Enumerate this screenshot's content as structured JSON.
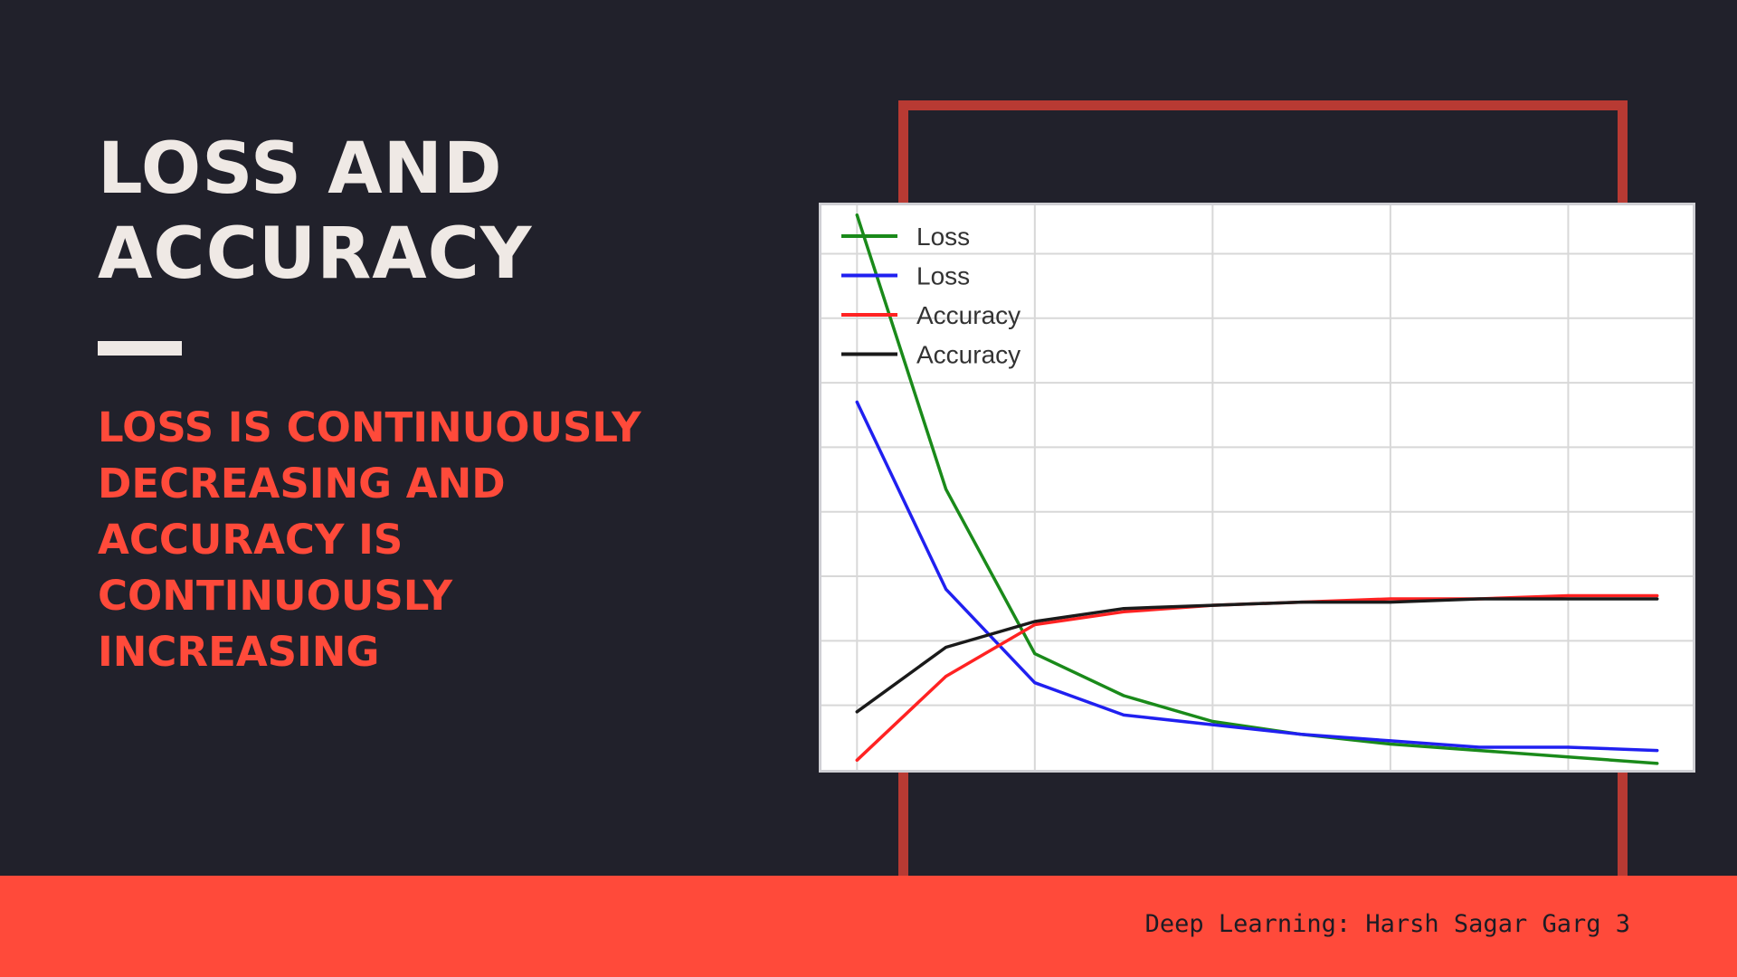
{
  "slide": {
    "title_lines": [
      "LOSS AND",
      "ACCURACY"
    ],
    "subtitle_lines": [
      "LOSS IS CONTINUOUSLY",
      "DECREASING AND",
      "ACCURACY IS",
      "CONTINUOUSLY",
      "INCREASING"
    ],
    "footer": "Deep Learning: Harsh Sagar Garg 3"
  },
  "colors": {
    "background": "#21212b",
    "title": "#efe9e5",
    "accent": "#ff4a3a",
    "frame": "#b83a33"
  },
  "chart_data": {
    "type": "line",
    "title": "",
    "xlabel": "",
    "ylabel": "",
    "x": [
      0,
      1,
      2,
      3,
      4,
      5,
      6,
      7,
      8,
      9
    ],
    "xlim": [
      -0.4,
      9.4
    ],
    "ylim": [
      0.2,
      1.95
    ],
    "grid": true,
    "legend_position": "top-left",
    "series": [
      {
        "name": "Loss",
        "color": "#1a8a1a",
        "values": [
          1.92,
          1.07,
          0.56,
          0.43,
          0.35,
          0.31,
          0.28,
          0.26,
          0.24,
          0.22
        ]
      },
      {
        "name": "Loss",
        "color": "#2020f0",
        "values": [
          1.34,
          0.76,
          0.47,
          0.37,
          0.34,
          0.31,
          0.29,
          0.27,
          0.27,
          0.26
        ]
      },
      {
        "name": "Accuracy",
        "color": "#ff2222",
        "values": [
          0.23,
          0.49,
          0.65,
          0.69,
          0.71,
          0.72,
          0.73,
          0.73,
          0.74,
          0.74
        ]
      },
      {
        "name": "Accuracy",
        "color": "#1a1a1a",
        "values": [
          0.38,
          0.58,
          0.66,
          0.7,
          0.71,
          0.72,
          0.72,
          0.73,
          0.73,
          0.73
        ]
      }
    ]
  }
}
